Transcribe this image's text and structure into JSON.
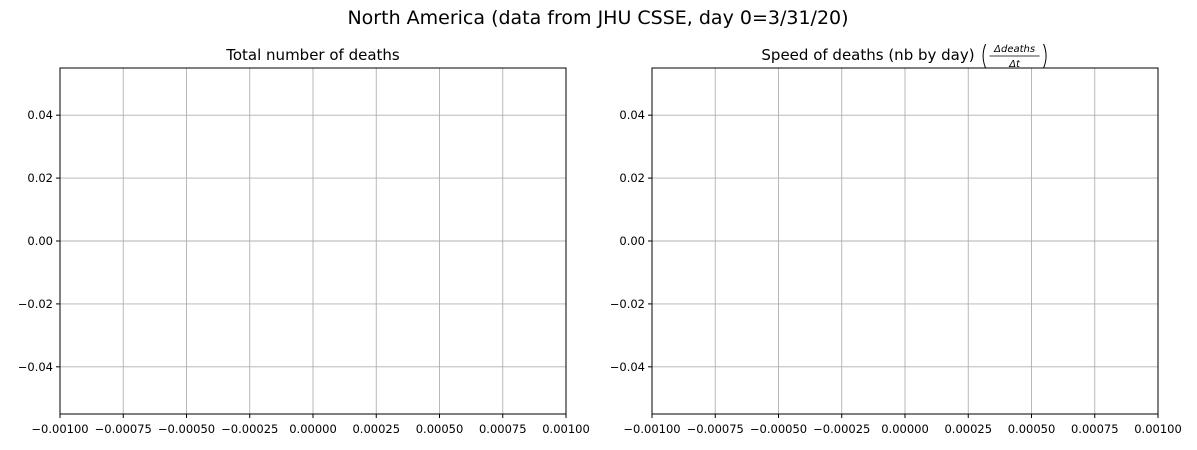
{
  "figure": {
    "suptitle": "North America (data from JHU CSSE, day 0=3/31/20)"
  },
  "chart_data": [
    {
      "type": "line",
      "title": "Total number of deaths",
      "xlabel": "",
      "ylabel": "",
      "series": [],
      "xlim": [
        -0.001,
        0.001
      ],
      "ylim": [
        -0.055,
        0.055
      ],
      "xticks": [
        -0.001,
        -0.00075,
        -0.0005,
        -0.00025,
        0,
        0.00025,
        0.0005,
        0.00075,
        0.001
      ],
      "xtick_labels": [
        "−0.00100",
        "−0.00075",
        "−0.00050",
        "−0.00025",
        "0.00000",
        "0.00025",
        "0.00050",
        "0.00075",
        "0.00100"
      ],
      "yticks": [
        -0.04,
        -0.02,
        0,
        0.02,
        0.04
      ],
      "ytick_labels": [
        "−0.04",
        "−0.02",
        "0.00",
        "0.02",
        "0.04"
      ],
      "grid": true
    },
    {
      "type": "line",
      "title": "Speed of deaths (nb by day)",
      "title_math": {
        "numerator": "Δdeaths",
        "denominator": "Δt"
      },
      "xlabel": "",
      "ylabel": "",
      "series": [],
      "xlim": [
        -0.001,
        0.001
      ],
      "ylim": [
        -0.055,
        0.055
      ],
      "xticks": [
        -0.001,
        -0.00075,
        -0.0005,
        -0.00025,
        0,
        0.00025,
        0.0005,
        0.00075,
        0.001
      ],
      "xtick_labels": [
        "−0.00100",
        "−0.00075",
        "−0.00050",
        "−0.00025",
        "0.00000",
        "0.00025",
        "0.00050",
        "0.00075",
        "0.00100"
      ],
      "yticks": [
        -0.04,
        -0.02,
        0,
        0.02,
        0.04
      ],
      "ytick_labels": [
        "−0.04",
        "−0.02",
        "0.00",
        "0.02",
        "0.04"
      ],
      "grid": true
    }
  ]
}
